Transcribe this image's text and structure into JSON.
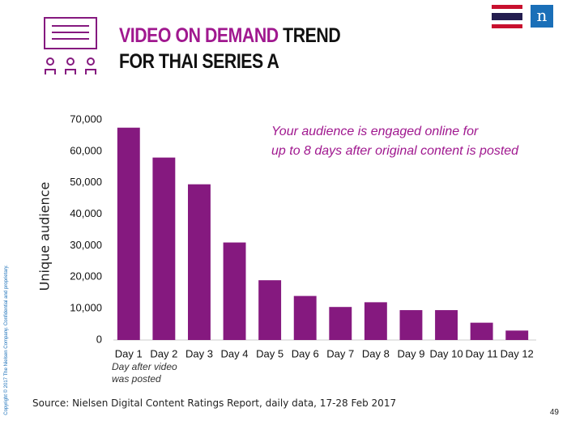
{
  "title_highlight": "VIDEO ON DEMAND",
  "title_rest": "TREND FOR THAI SERIES A",
  "annotation": [
    "Your audience is engaged online for",
    "up to 8 days after original content is posted"
  ],
  "source": "Source: Nielsen Digital Content Ratings Report, daily data, 17-28 Feb 2017",
  "page_number": "49",
  "copyright": "Copyright © 2017 The Nielsen Company. Confidential and proprietary.",
  "logo": "n",
  "chart_data": {
    "type": "bar",
    "y_label": "Unique audience",
    "x_label": "Day after video was posted",
    "categories": [
      "Day 1",
      "Day 2",
      "Day 3",
      "Day 4",
      "Day 5",
      "Day 6",
      "Day 7",
      "Day 8",
      "Day 9",
      "Day 10",
      "Day 11",
      "Day 12"
    ],
    "values": [
      67500,
      58000,
      49500,
      31000,
      19000,
      14000,
      10500,
      12000,
      9500,
      9500,
      5500,
      3000
    ],
    "color": "#85197f",
    "ylim": [
      0,
      70000
    ],
    "yticks": [
      0,
      {
        "value": 10000,
        "label": "10,000"
      },
      {
        "value": 20000,
        "label": "20,000"
      },
      {
        "value": 30000,
        "label": "30,000"
      },
      {
        "value": 40000,
        "label": "40,000"
      },
      {
        "value": 50000,
        "label": "50,000"
      },
      {
        "value": 60000,
        "label": "60,000"
      },
      {
        "value": 70000,
        "label": "70,000"
      }
    ],
    "grid": false
  }
}
